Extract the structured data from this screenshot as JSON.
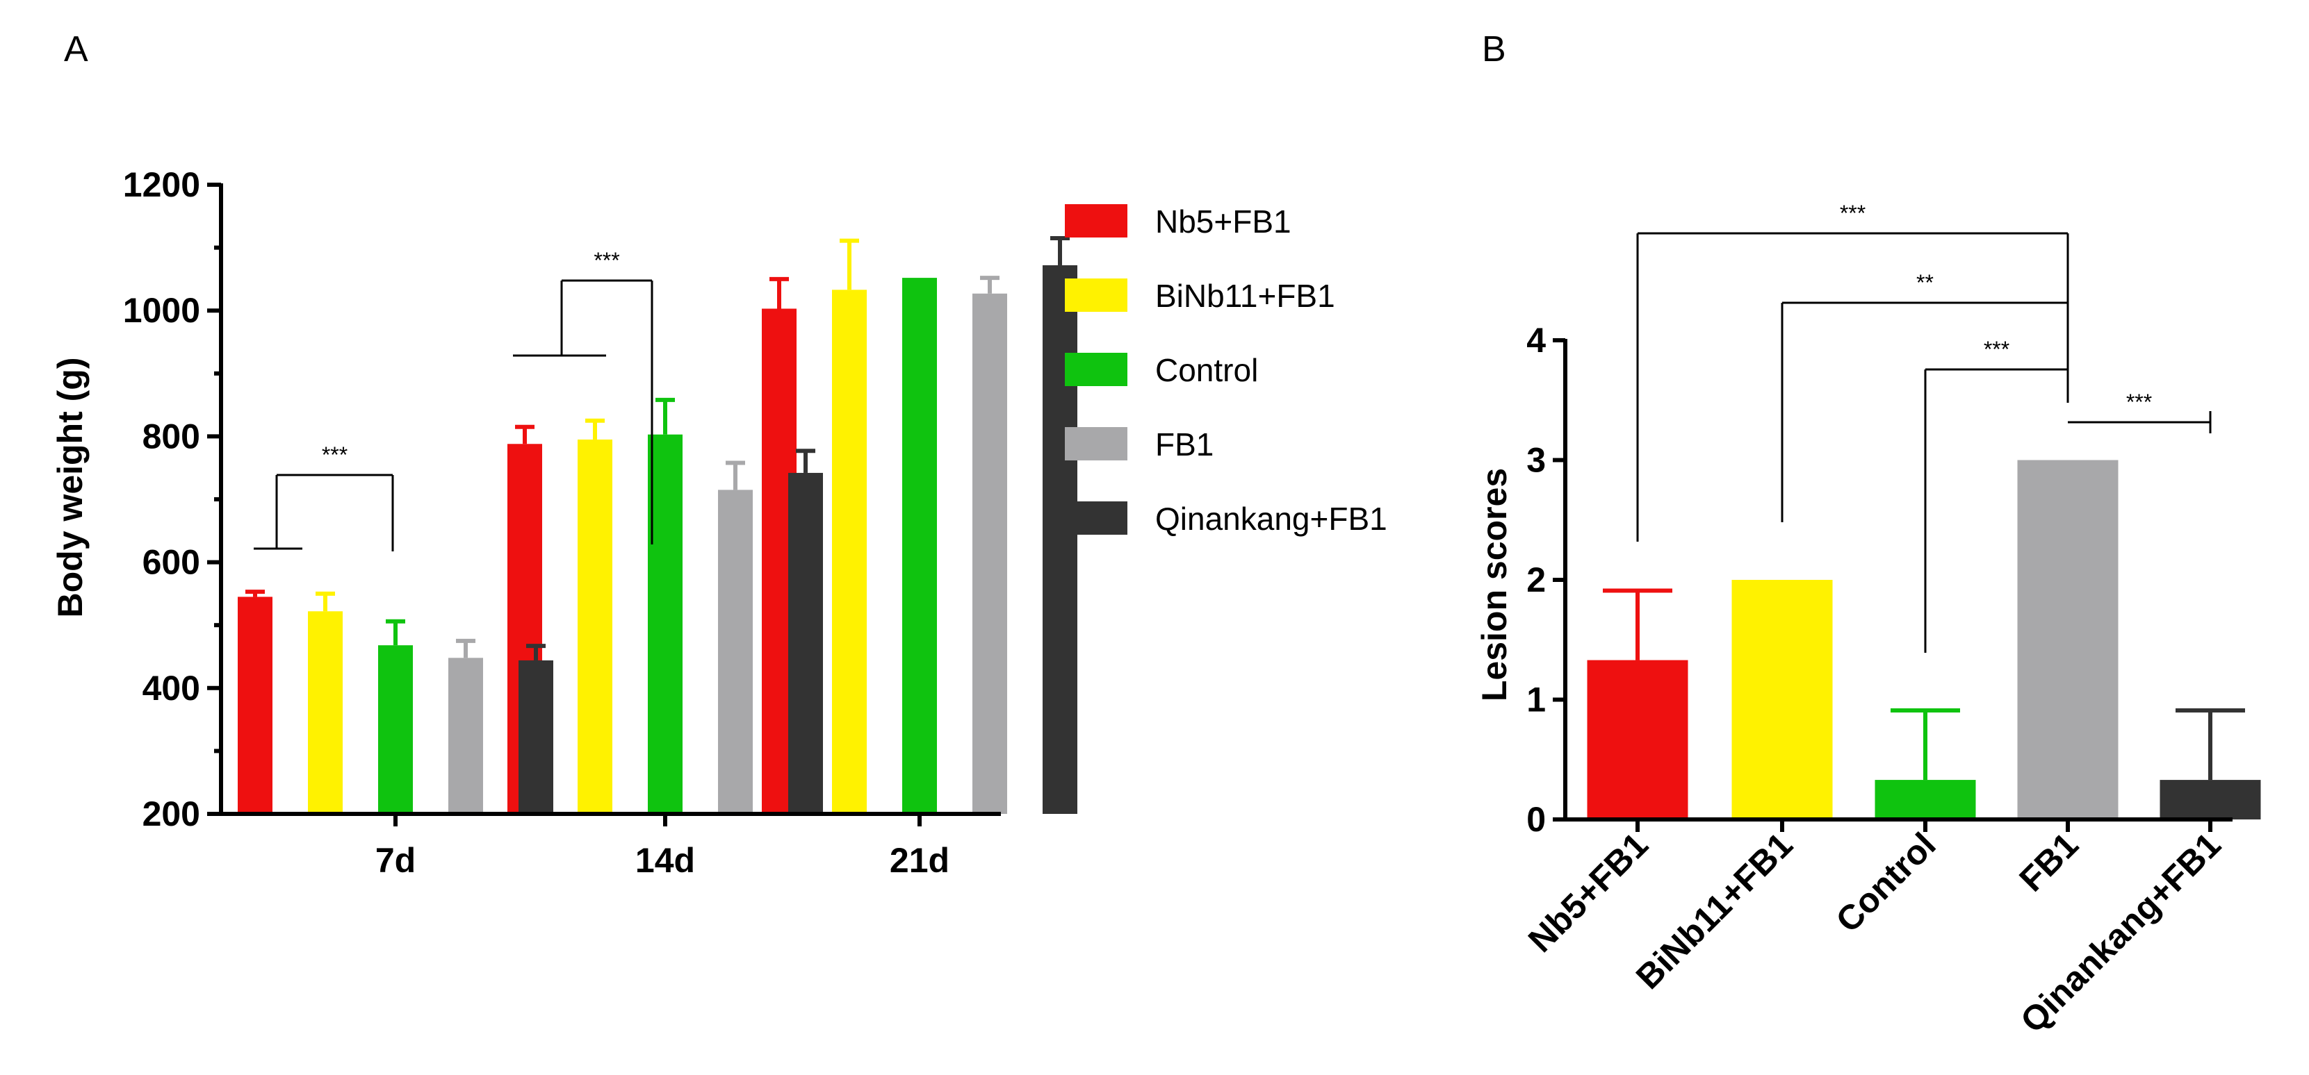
{
  "colors": {
    "Nb5+FB1": "#ee1010",
    "BiNb11+FB1": "#fff200",
    "Control": "#0fc30f",
    "FB1": "#a8a8aa",
    "Qinankang+FB1": "#333333"
  },
  "chart_data": [
    {
      "panel": "A",
      "type": "bar",
      "ylabel": "Body weight (g)",
      "xlabel": "",
      "ylim": [
        200,
        1200
      ],
      "yticks": [
        200,
        400,
        600,
        800,
        1000,
        1200
      ],
      "categories": [
        "7d",
        "14d",
        "21d"
      ],
      "legend_position": "right",
      "series": [
        {
          "name": "Nb5+FB1",
          "values": [
            545,
            788,
            1003
          ],
          "errors": [
            8,
            27,
            47
          ]
        },
        {
          "name": "BiNb11+FB1",
          "values": [
            522,
            795,
            1033
          ],
          "errors": [
            28,
            30,
            78
          ]
        },
        {
          "name": "Control",
          "values": [
            468,
            803,
            1052
          ],
          "errors": [
            38,
            55,
            0
          ]
        },
        {
          "name": "FB1",
          "values": [
            448,
            715,
            1027
          ],
          "errors": [
            27,
            43,
            25
          ]
        },
        {
          "name": "Qinankang+FB1",
          "values": [
            444,
            742,
            1072
          ],
          "errors": [
            23,
            35,
            43
          ]
        }
      ],
      "annotations": [
        {
          "category": "7d",
          "label": "***"
        },
        {
          "category": "14d",
          "label": "***"
        }
      ]
    },
    {
      "panel": "B",
      "type": "bar",
      "ylabel": "Lesion scores",
      "xlabel": "",
      "ylim": [
        0,
        4
      ],
      "yticks": [
        0,
        1,
        2,
        3,
        4
      ],
      "categories": [
        "Nb5+FB1",
        "BiNb11+FB1",
        "Control",
        "FB1",
        "Qinankang+FB1"
      ],
      "values": [
        1.33,
        2.0,
        0.33,
        3.0,
        0.33
      ],
      "errors": [
        0.58,
        0,
        0.58,
        0,
        0.58
      ],
      "annotations": [
        {
          "from": "Nb5+FB1",
          "to": "FB1",
          "label": "***"
        },
        {
          "from": "BiNb11+FB1",
          "to": "FB1",
          "label": "**"
        },
        {
          "from": "Control",
          "to": "FB1",
          "label": "***"
        },
        {
          "from": "FB1",
          "to": "Qinankang+FB1",
          "label": "***"
        }
      ]
    }
  ]
}
